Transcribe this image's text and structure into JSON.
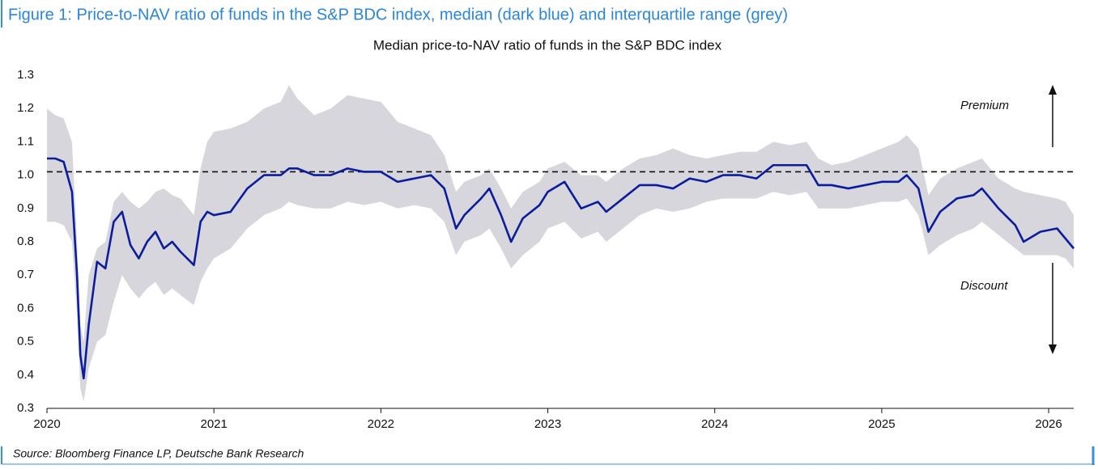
{
  "figure_title": "Figure 1: Price-to-NAV ratio of funds in the S&P BDC index, median (dark blue) and interquartile range (grey)",
  "source": "Source: Bloomberg Finance LP, Deutsche Bank Research",
  "chart_data": {
    "type": "line",
    "title": "Median price-to-NAV ratio of funds in the S&P BDC index",
    "annotations": [
      "Premium",
      "Discount"
    ],
    "hline": 1.01,
    "x": [
      2020.0,
      2020.05,
      2020.1,
      2020.15,
      2020.18,
      2020.2,
      2020.22,
      2020.25,
      2020.3,
      2020.35,
      2020.4,
      2020.45,
      2020.5,
      2020.55,
      2020.6,
      2020.65,
      2020.7,
      2020.75,
      2020.8,
      2020.88,
      2020.92,
      2020.96,
      2021.0,
      2021.1,
      2021.2,
      2021.3,
      2021.4,
      2021.45,
      2021.5,
      2021.6,
      2021.7,
      2021.8,
      2021.9,
      2022.0,
      2022.1,
      2022.2,
      2022.3,
      2022.38,
      2022.45,
      2022.5,
      2022.6,
      2022.65,
      2022.72,
      2022.78,
      2022.85,
      2022.95,
      2023.0,
      2023.1,
      2023.2,
      2023.3,
      2023.35,
      2023.45,
      2023.55,
      2023.65,
      2023.75,
      2023.85,
      2023.95,
      2024.05,
      2024.15,
      2024.25,
      2024.35,
      2024.45,
      2024.55,
      2024.62,
      2024.7,
      2024.8,
      2024.9,
      2025.0,
      2025.1,
      2025.15,
      2025.22,
      2025.28,
      2025.35,
      2025.45,
      2025.55,
      2025.6,
      2025.7,
      2025.8,
      2025.85,
      2025.95,
      2026.05,
      2026.1,
      2026.15
    ],
    "series": [
      {
        "color": "#0c1d9c",
        "values": [
          1.05,
          1.05,
          1.04,
          0.95,
          0.7,
          0.46,
          0.39,
          0.55,
          0.74,
          0.72,
          0.86,
          0.89,
          0.79,
          0.75,
          0.8,
          0.83,
          0.78,
          0.8,
          0.77,
          0.73,
          0.86,
          0.89,
          0.88,
          0.89,
          0.96,
          1.0,
          1.0,
          1.02,
          1.02,
          1.0,
          1.0,
          1.02,
          1.01,
          1.01,
          0.98,
          0.99,
          1.0,
          0.96,
          0.84,
          0.88,
          0.93,
          0.96,
          0.88,
          0.8,
          0.87,
          0.91,
          0.95,
          0.98,
          0.9,
          0.92,
          0.89,
          0.93,
          0.97,
          0.97,
          0.96,
          0.99,
          0.98,
          1.0,
          1.0,
          0.99,
          1.03,
          1.03,
          1.03,
          0.97,
          0.97,
          0.96,
          0.97,
          0.98,
          0.98,
          1.0,
          0.96,
          0.83,
          0.89,
          0.93,
          0.94,
          0.96,
          0.9,
          0.85,
          0.8,
          0.83,
          0.84,
          0.81,
          0.78
        ]
      },
      {
        "type": "band",
        "color": "#d6d6dc",
        "low": [
          0.86,
          0.86,
          0.85,
          0.8,
          0.58,
          0.36,
          0.32,
          0.42,
          0.5,
          0.52,
          0.62,
          0.7,
          0.66,
          0.63,
          0.66,
          0.68,
          0.64,
          0.66,
          0.64,
          0.61,
          0.68,
          0.72,
          0.75,
          0.78,
          0.84,
          0.88,
          0.9,
          0.92,
          0.91,
          0.9,
          0.9,
          0.92,
          0.91,
          0.92,
          0.9,
          0.91,
          0.9,
          0.86,
          0.76,
          0.8,
          0.82,
          0.84,
          0.78,
          0.72,
          0.76,
          0.8,
          0.84,
          0.86,
          0.81,
          0.83,
          0.8,
          0.84,
          0.88,
          0.9,
          0.89,
          0.9,
          0.92,
          0.93,
          0.93,
          0.93,
          0.95,
          0.94,
          0.95,
          0.9,
          0.9,
          0.9,
          0.91,
          0.92,
          0.92,
          0.93,
          0.88,
          0.76,
          0.79,
          0.82,
          0.84,
          0.86,
          0.82,
          0.78,
          0.76,
          0.76,
          0.76,
          0.75,
          0.72
        ],
        "high": [
          1.2,
          1.18,
          1.17,
          1.1,
          0.8,
          0.55,
          0.5,
          0.7,
          0.78,
          0.8,
          0.92,
          0.95,
          0.92,
          0.9,
          0.92,
          0.95,
          0.96,
          0.94,
          0.93,
          0.88,
          1.02,
          1.1,
          1.13,
          1.14,
          1.16,
          1.2,
          1.22,
          1.27,
          1.23,
          1.18,
          1.2,
          1.24,
          1.23,
          1.22,
          1.16,
          1.14,
          1.12,
          1.06,
          0.95,
          0.98,
          1.0,
          1.02,
          0.96,
          0.9,
          0.95,
          0.98,
          1.02,
          1.04,
          1.0,
          1.0,
          0.98,
          1.02,
          1.05,
          1.06,
          1.08,
          1.06,
          1.05,
          1.06,
          1.07,
          1.07,
          1.1,
          1.09,
          1.1,
          1.05,
          1.03,
          1.04,
          1.06,
          1.08,
          1.1,
          1.12,
          1.08,
          0.94,
          0.99,
          1.02,
          1.04,
          1.05,
          0.99,
          0.96,
          0.95,
          0.94,
          0.93,
          0.92,
          0.88
        ]
      }
    ],
    "xlim": [
      2020,
      2026.15
    ],
    "ylim": [
      0.3,
      1.3
    ],
    "xticks": [
      2020,
      2021,
      2022,
      2023,
      2024,
      2025,
      2026
    ],
    "yticks": [
      0.3,
      0.4,
      0.5,
      0.6,
      0.7,
      0.8,
      0.9,
      {
        "value": 1,
        "label": "1.0"
      },
      1.1,
      1.2,
      1.3
    ]
  }
}
